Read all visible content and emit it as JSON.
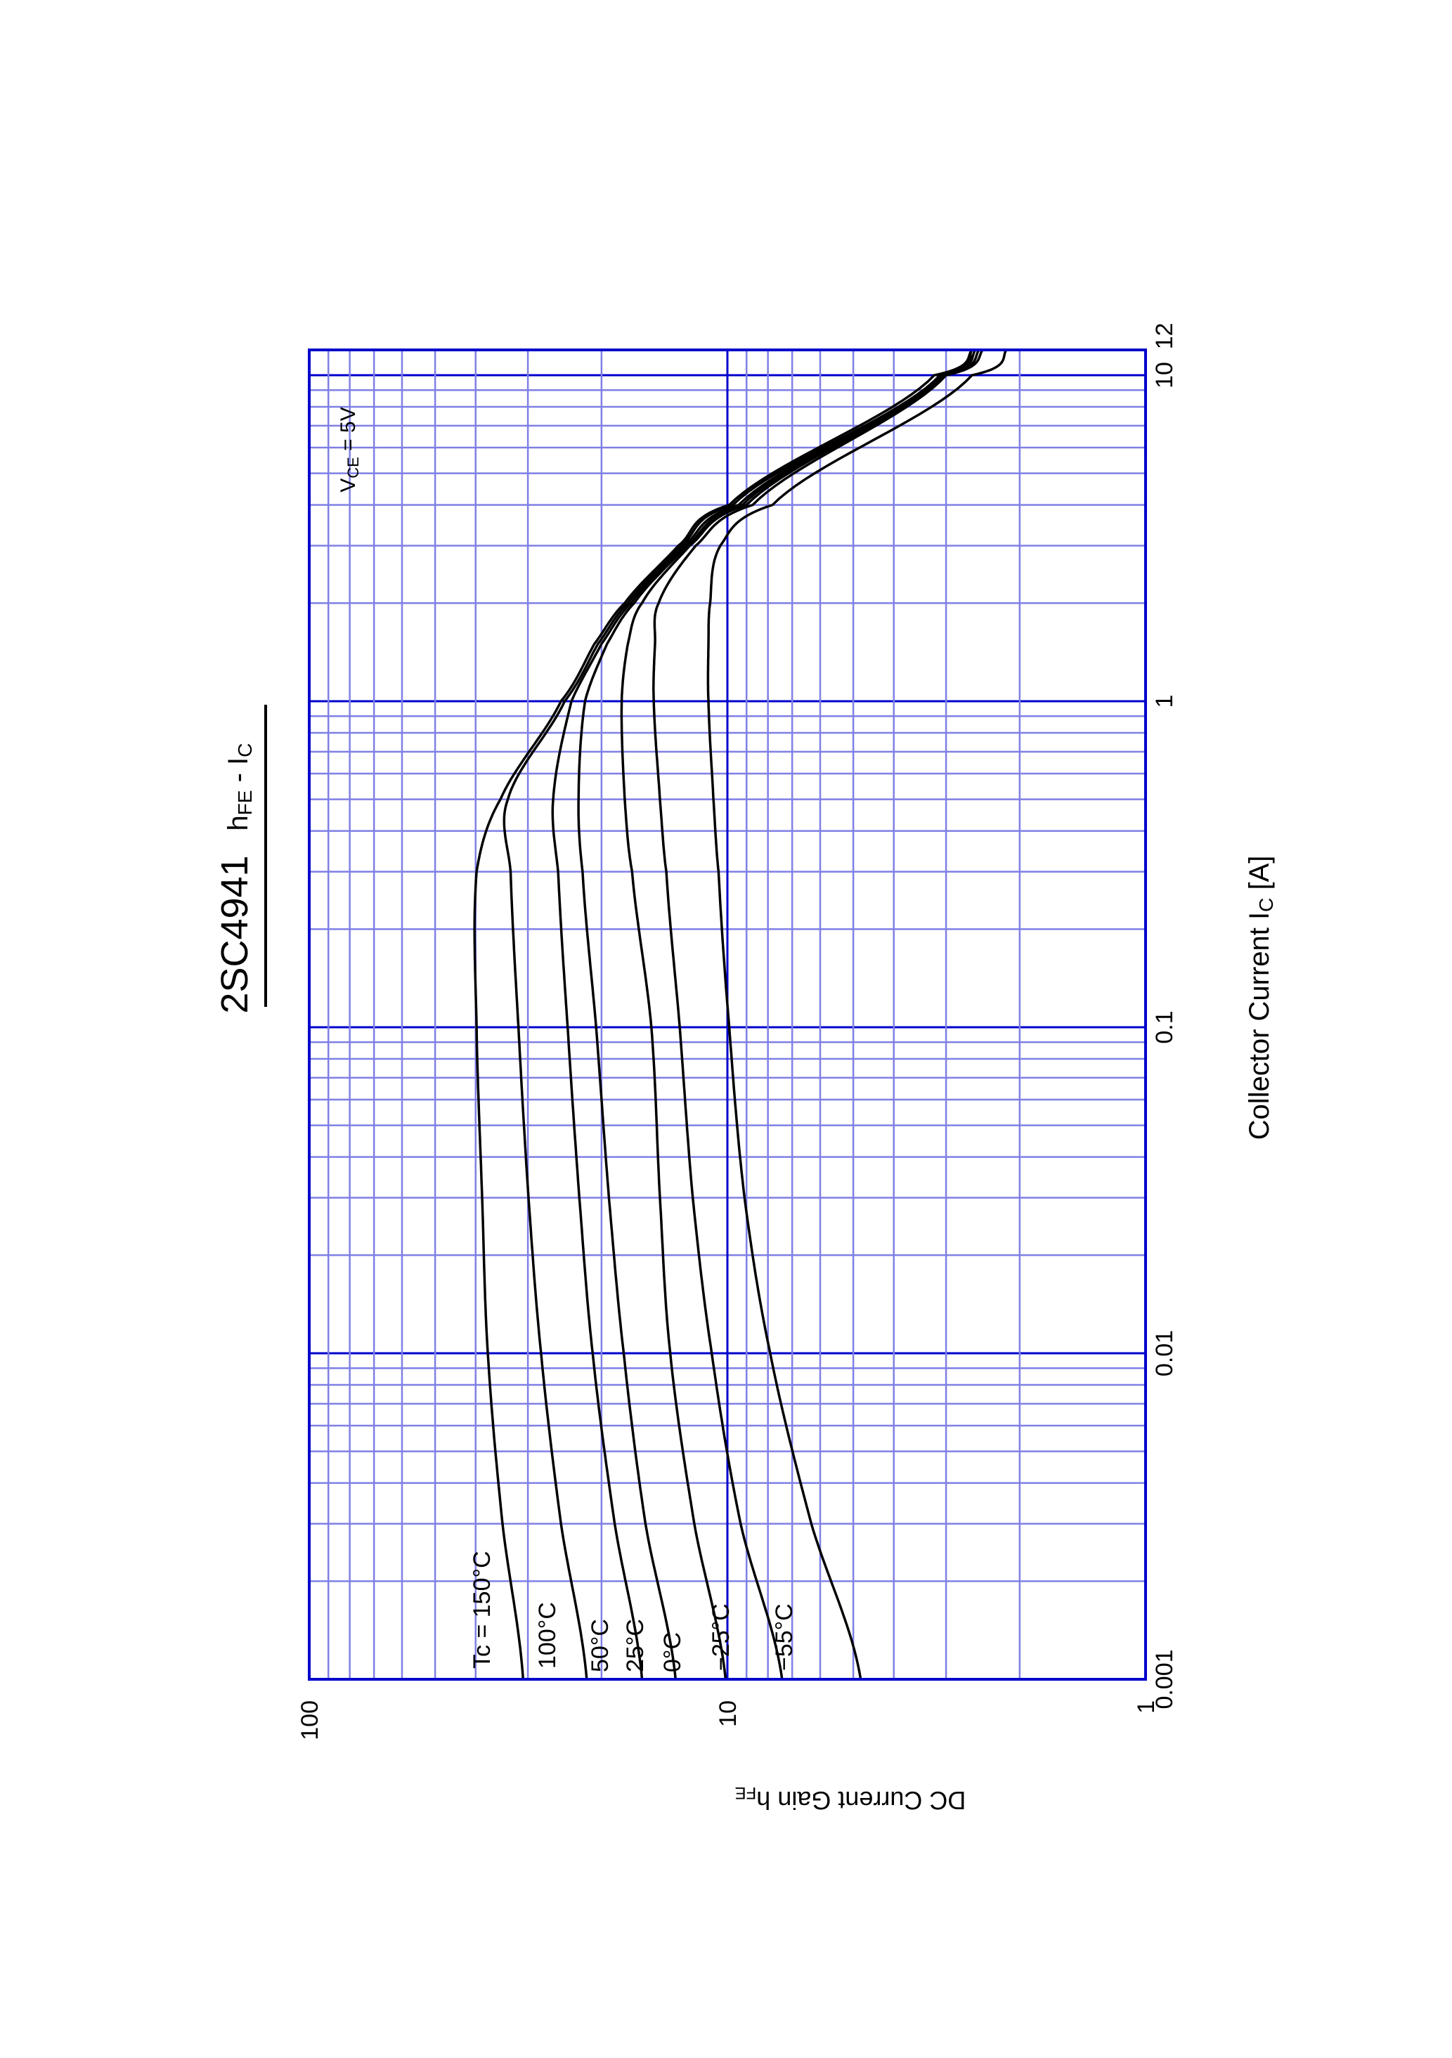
{
  "chart_data": {
    "type": "line",
    "title": "2SC4941",
    "subtitle": "hFE - IC",
    "xlabel": "Collector Current  IC  [A]",
    "ylabel": "DC Current Gain  hFE",
    "xscale": "log",
    "yscale": "log",
    "xlim": [
      0.001,
      12
    ],
    "ylim": [
      1,
      100
    ],
    "x_ticks": [
      "0.001",
      "0.01",
      "0.1",
      "1",
      "10",
      "12"
    ],
    "y_ticks": [
      "1",
      "10",
      "100"
    ],
    "grid": true,
    "condition": "VCE = 5V",
    "orientation": "rotated 90 degrees (page landscape)",
    "x": [
      0.001,
      0.003,
      0.01,
      0.03,
      0.1,
      0.3,
      0.5,
      1,
      1.5,
      2,
      3,
      4,
      10,
      12
    ],
    "series": [
      {
        "name": "Tc = 150°C",
        "label": "Tc = 150°C",
        "values": [
          30.8,
          34.5,
          37.4,
          38.6,
          39.8,
          39.8,
          34.9,
          25.0,
          20.8,
          17.6,
          13.1,
          9.9,
          3.2,
          2.6
        ]
      },
      {
        "name": "100°C",
        "label": "100°C",
        "values": [
          21.7,
          25.0,
          27.9,
          29.9,
          31.6,
          33.0,
          33.5,
          24.5,
          20.4,
          17.3,
          12.9,
          9.7,
          3.1,
          2.6
        ]
      },
      {
        "name": "50°C",
        "label": "50°C",
        "values": [
          16.0,
          18.6,
          21.0,
          22.6,
          24.1,
          25.4,
          26.1,
          23.6,
          20.0,
          17.0,
          12.7,
          9.4,
          3.1,
          2.6
        ]
      },
      {
        "name": "25°C",
        "label": "25°C",
        "values": [
          13.3,
          15.7,
          17.7,
          19.2,
          20.6,
          22.2,
          22.7,
          21.9,
          19.4,
          16.7,
          12.5,
          9.2,
          3.1,
          2.55
        ]
      },
      {
        "name": "0°C",
        "label": "0°C",
        "values": [
          10.1,
          12.0,
          13.7,
          14.5,
          15.2,
          16.9,
          17.6,
          17.9,
          17.3,
          16.0,
          12.3,
          9.0,
          3.05,
          2.5
        ]
      },
      {
        "name": "-25°C",
        "label": "−25°C",
        "values": [
          7.4,
          9.3,
          10.9,
          12.1,
          13.0,
          14.0,
          14.5,
          15.0,
          14.9,
          14.6,
          11.9,
          8.7,
          3.0,
          2.45
        ]
      },
      {
        "name": "-55°C",
        "label": "−55°C",
        "values": [
          4.8,
          6.3,
          7.9,
          9.1,
          9.9,
          10.5,
          10.8,
          11.1,
          11.1,
          11.0,
          10.4,
          7.8,
          2.6,
          2.15
        ]
      }
    ],
    "colors": {
      "curve": "#000000",
      "major_grid": "#0000CC",
      "minor_grid": "#7F7FE6",
      "frame": "#0000CC"
    }
  }
}
